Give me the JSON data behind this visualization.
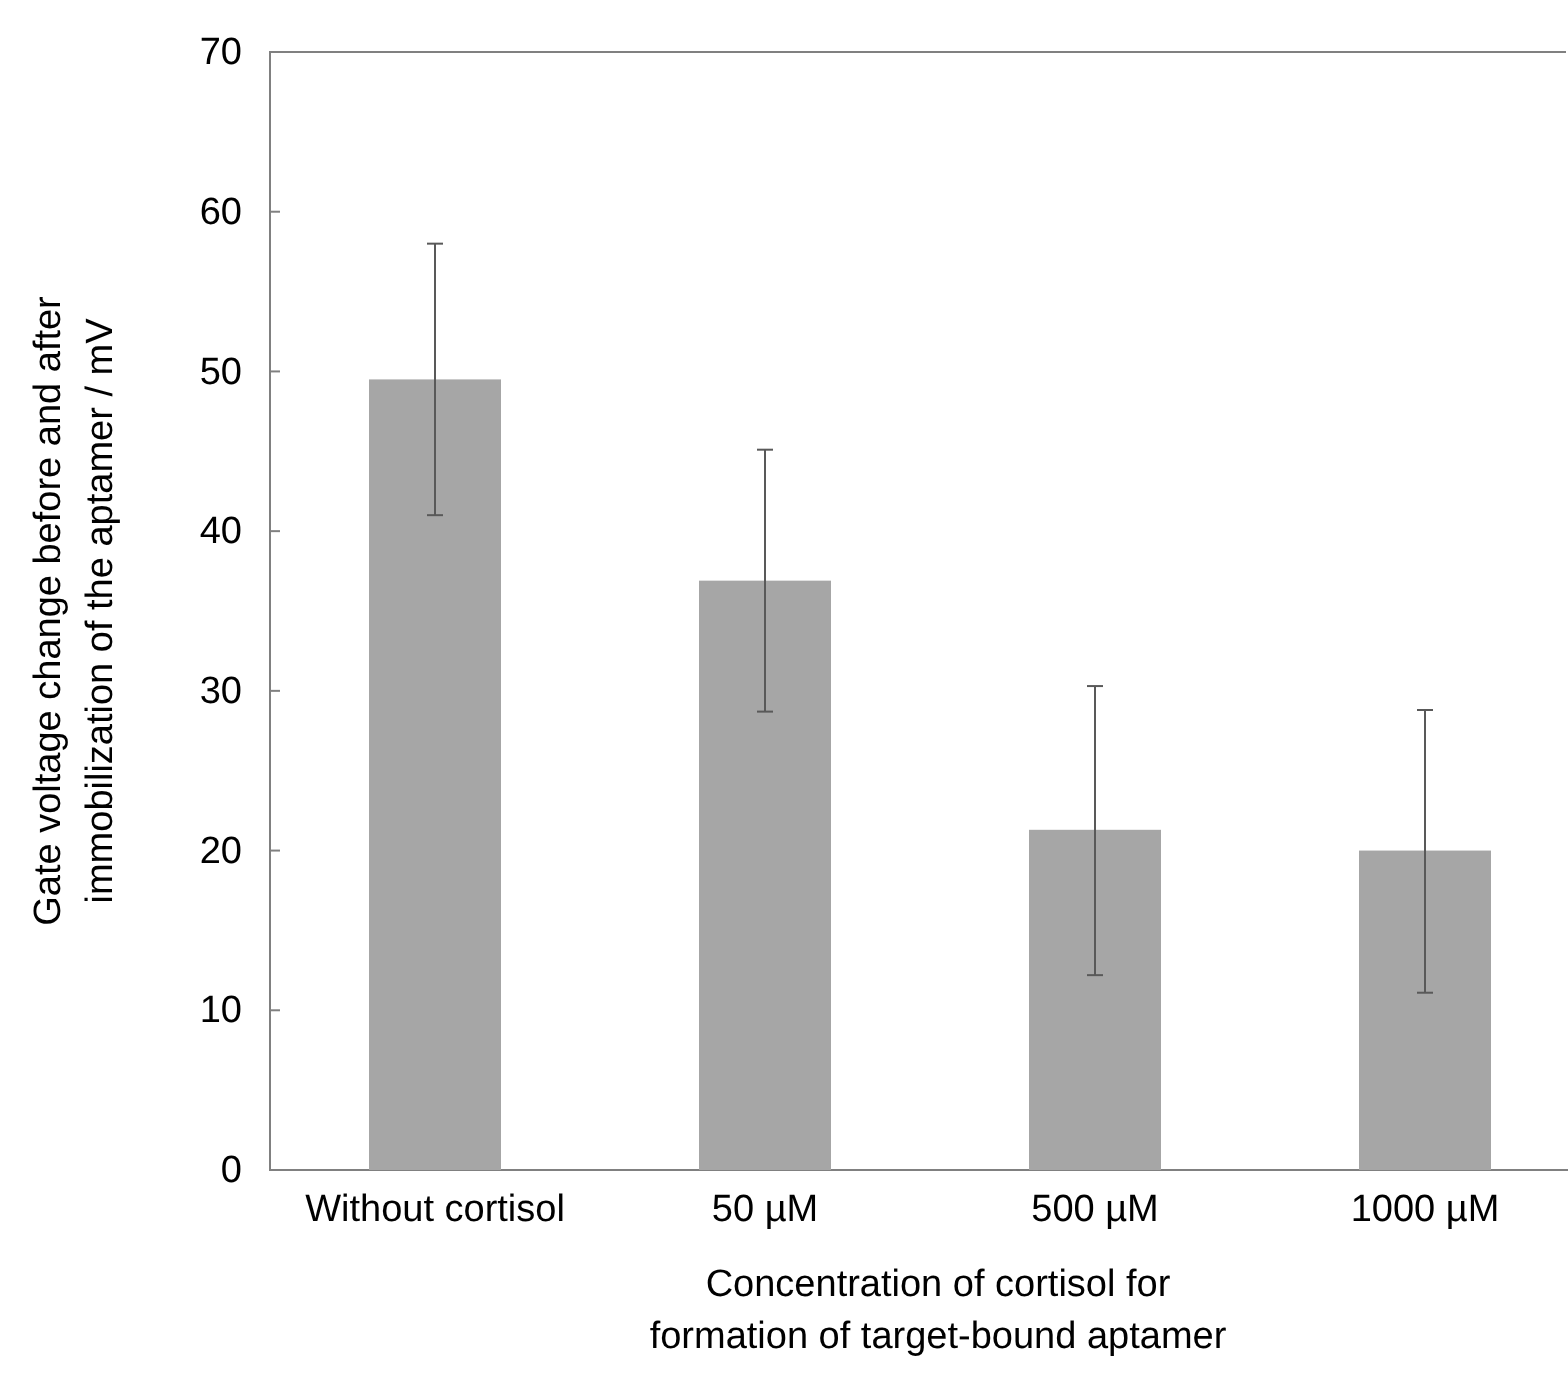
{
  "chart_data": {
    "type": "bar",
    "xlabel": "Concentration of cortisol for\nformation of target-bound aptamer",
    "ylabel": "Gate voltage change before and after\nimmobilization of the aptamer / mV",
    "categories": [
      "Without cortisol",
      "50 µM",
      "500 µM",
      "1000 µM"
    ],
    "values": [
      49.5,
      36.9,
      21.3,
      20.0
    ],
    "errors": [
      [
        41.0,
        58.0
      ],
      [
        28.7,
        45.1
      ],
      [
        12.2,
        30.3
      ],
      [
        11.1,
        28.8
      ]
    ],
    "color": "#a6a6a6",
    "ylim": [
      0,
      70
    ],
    "yticks": [
      0,
      10,
      20,
      30,
      40,
      50,
      60,
      70
    ],
    "grid": false
  }
}
